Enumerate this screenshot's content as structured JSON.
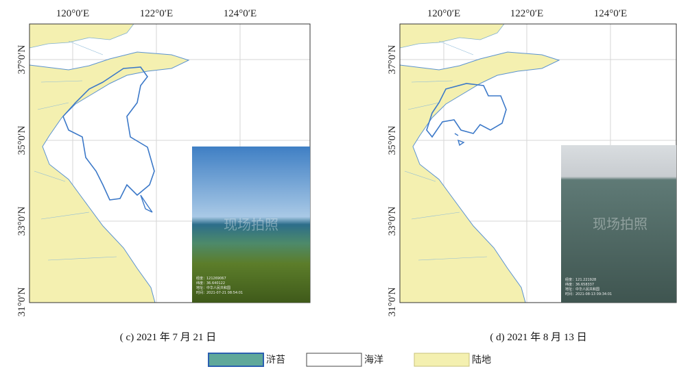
{
  "maps": [
    {
      "lon_ticks": [
        "120°0′E",
        "122°0′E",
        "124°0′E"
      ],
      "lat_ticks": [
        "37°0′N",
        "35°0′N",
        "33°0′N",
        "31°0′N"
      ],
      "caption": "( c) 2021 年 7 月 21 日",
      "photo": {
        "watermark": "现场拍照",
        "lines": [
          "经度：121269067",
          "纬度：36.640122",
          "地址：中华人民共和国",
          "时间：2021-07-21 08:54:01"
        ]
      }
    },
    {
      "lon_ticks": [
        "120°0′E",
        "122°0′E",
        "124°0′E"
      ],
      "lat_ticks": [
        "37°0′N",
        "35°0′N",
        "33°0′N",
        "31°0′N"
      ],
      "caption": "( d) 2021 年 8 月 13 日",
      "photo": {
        "watermark": "现场拍照",
        "lines": [
          "经度：121.221928",
          "纬度：36.658337",
          "地址：中华人民共和国",
          "时间：2021-08-13 09:34:01"
        ]
      }
    }
  ],
  "legend": [
    "浒苔",
    "海洋",
    "陆地"
  ]
}
